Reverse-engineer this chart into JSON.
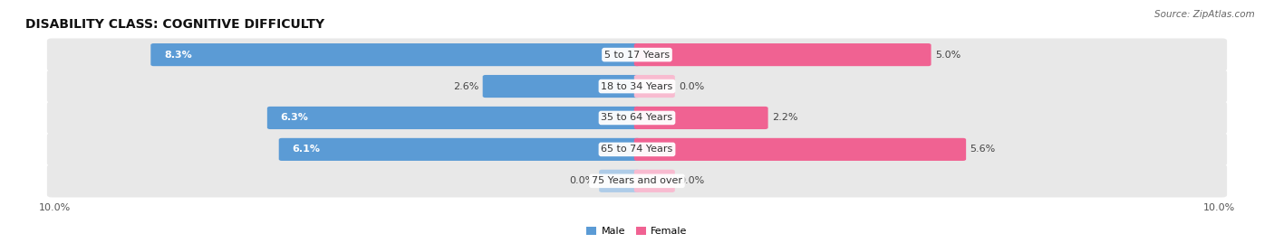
{
  "title": "DISABILITY CLASS: COGNITIVE DIFFICULTY",
  "source": "Source: ZipAtlas.com",
  "categories": [
    "5 to 17 Years",
    "18 to 34 Years",
    "35 to 64 Years",
    "65 to 74 Years",
    "75 Years and over"
  ],
  "male_values": [
    8.3,
    2.6,
    6.3,
    6.1,
    0.0
  ],
  "female_values": [
    5.0,
    0.0,
    2.2,
    5.6,
    0.0
  ],
  "max_value": 10.0,
  "male_color_dark": "#5b9bd5",
  "male_color_light": "#aecce8",
  "female_color_dark": "#f06292",
  "female_color_light": "#f8bbd0",
  "bg_row_color": "#e8e8e8",
  "title_fontsize": 10,
  "label_fontsize": 8,
  "tick_fontsize": 8,
  "stub_size": 0.6
}
